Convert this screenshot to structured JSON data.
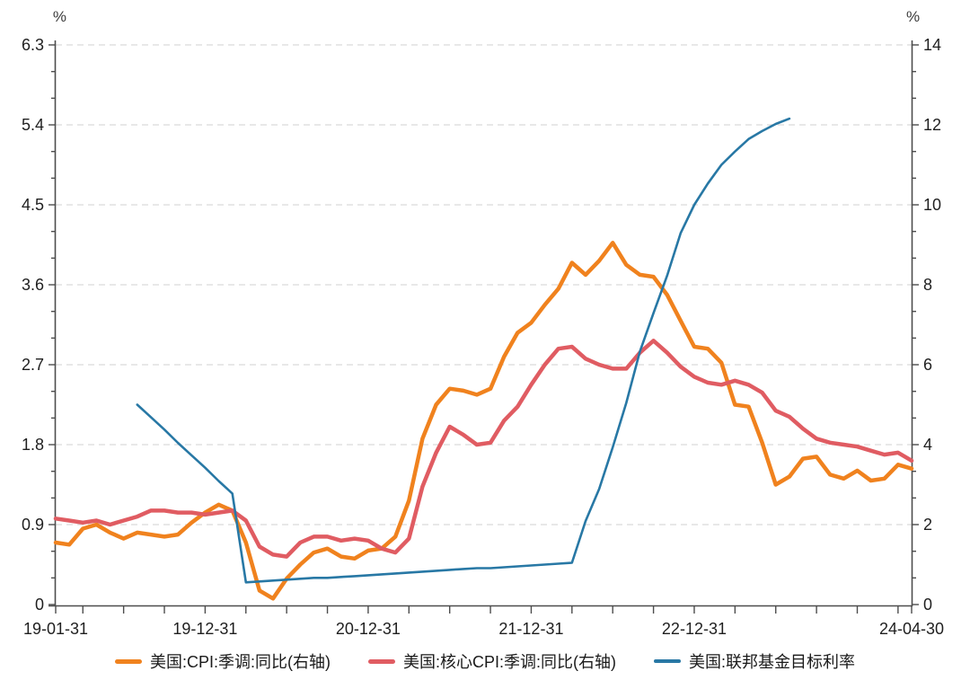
{
  "chart_data": {
    "type": "line",
    "title": "",
    "grid": "horizontal-dashed",
    "legend_position": "bottom-center",
    "left_axis": {
      "unit": "%",
      "min": 0,
      "max": 6.3,
      "ticks": [
        0,
        0.9,
        1.8,
        2.7,
        3.6,
        4.5,
        5.4,
        6.3
      ],
      "tick_labels": [
        "0",
        "0.9",
        "1.8",
        "2.7",
        "3.6",
        "4.5",
        "5.4",
        "6.3"
      ],
      "minor_divisions": 3
    },
    "right_axis": {
      "unit": "%",
      "min": 0,
      "max": 14,
      "ticks": [
        0,
        2,
        4,
        6,
        8,
        10,
        12,
        14
      ],
      "tick_labels": [
        "0",
        "2",
        "4",
        "6",
        "8",
        "10",
        "12",
        "14"
      ],
      "minor_divisions": 3
    },
    "x_axis": {
      "start_month_index": 0,
      "end_month_index": 63,
      "start_date": "2019-01-31",
      "end_date": "2024-04-30",
      "labels": [
        {
          "text": "19-01-31",
          "month": 0
        },
        {
          "text": "19-12-31",
          "month": 11
        },
        {
          "text": "20-12-31",
          "month": 23
        },
        {
          "text": "21-12-31",
          "month": 35
        },
        {
          "text": "22-12-31",
          "month": 47
        },
        {
          "text": "24-04-30",
          "month": 63
        }
      ]
    },
    "series": [
      {
        "name": "美国:CPI:季调:同比(右轴)",
        "axis": "right",
        "color": "#F0821E",
        "width": 4.5,
        "values": [
          1.55,
          1.5,
          1.9,
          2.0,
          1.8,
          1.65,
          1.8,
          1.75,
          1.7,
          1.75,
          2.05,
          2.3,
          2.5,
          2.35,
          1.55,
          0.35,
          0.15,
          0.65,
          1.0,
          1.3,
          1.4,
          1.2,
          1.15,
          1.35,
          1.4,
          1.7,
          2.6,
          4.15,
          5.0,
          5.4,
          5.35,
          5.25,
          5.4,
          6.2,
          6.8,
          7.05,
          7.5,
          7.9,
          8.55,
          8.25,
          8.6,
          9.05,
          8.5,
          8.25,
          8.2,
          7.75,
          7.1,
          6.45,
          6.4,
          6.05,
          5.0,
          4.95,
          4.05,
          3.0,
          3.2,
          3.65,
          3.7,
          3.25,
          3.15,
          3.35,
          3.1,
          3.15,
          3.5,
          3.4
        ]
      },
      {
        "name": "美国:核心CPI:季调:同比(右轴)",
        "axis": "right",
        "color": "#E05C62",
        "width": 4.5,
        "values": [
          2.15,
          2.1,
          2.05,
          2.1,
          2.0,
          2.1,
          2.2,
          2.35,
          2.35,
          2.3,
          2.3,
          2.25,
          2.3,
          2.35,
          2.1,
          1.45,
          1.25,
          1.2,
          1.55,
          1.7,
          1.7,
          1.6,
          1.65,
          1.6,
          1.4,
          1.3,
          1.65,
          2.95,
          3.8,
          4.45,
          4.25,
          4.0,
          4.05,
          4.6,
          4.95,
          5.5,
          6.0,
          6.4,
          6.45,
          6.15,
          6.0,
          5.9,
          5.9,
          6.3,
          6.6,
          6.3,
          5.95,
          5.7,
          5.55,
          5.5,
          5.6,
          5.5,
          5.3,
          4.85,
          4.7,
          4.4,
          4.15,
          4.05,
          4.0,
          3.95,
          3.85,
          3.75,
          3.8,
          3.6
        ]
      },
      {
        "name": "美国:联邦基金目标利率",
        "axis": "left",
        "color": "#2878A5",
        "width": 2.6,
        "values": [
          null,
          null,
          null,
          null,
          null,
          null,
          2.25,
          2.11,
          1.97,
          1.82,
          1.68,
          1.54,
          1.39,
          1.25,
          0.25,
          0.26,
          0.27,
          0.28,
          0.29,
          0.3,
          0.3,
          0.31,
          0.32,
          0.33,
          0.34,
          0.35,
          0.36,
          0.37,
          0.38,
          0.39,
          0.4,
          0.41,
          0.41,
          0.42,
          0.43,
          0.44,
          0.45,
          0.46,
          0.47,
          0.94,
          1.3,
          1.77,
          2.27,
          2.85,
          3.28,
          3.7,
          4.18,
          4.5,
          4.74,
          4.95,
          5.1,
          5.24,
          5.33,
          5.41,
          5.47,
          null,
          null,
          null,
          null,
          null,
          null,
          null,
          null,
          null
        ]
      }
    ]
  },
  "legend": {
    "items": [
      {
        "label": "美国:CPI:季调:同比(右轴)",
        "color": "#F0821E",
        "swatch_height": 5
      },
      {
        "label": "美国:核心CPI:季调:同比(右轴)",
        "color": "#E05C62",
        "swatch_height": 5
      },
      {
        "label": "美国:联邦基金目标利率",
        "color": "#2878A5",
        "swatch_height": 4
      }
    ]
  }
}
